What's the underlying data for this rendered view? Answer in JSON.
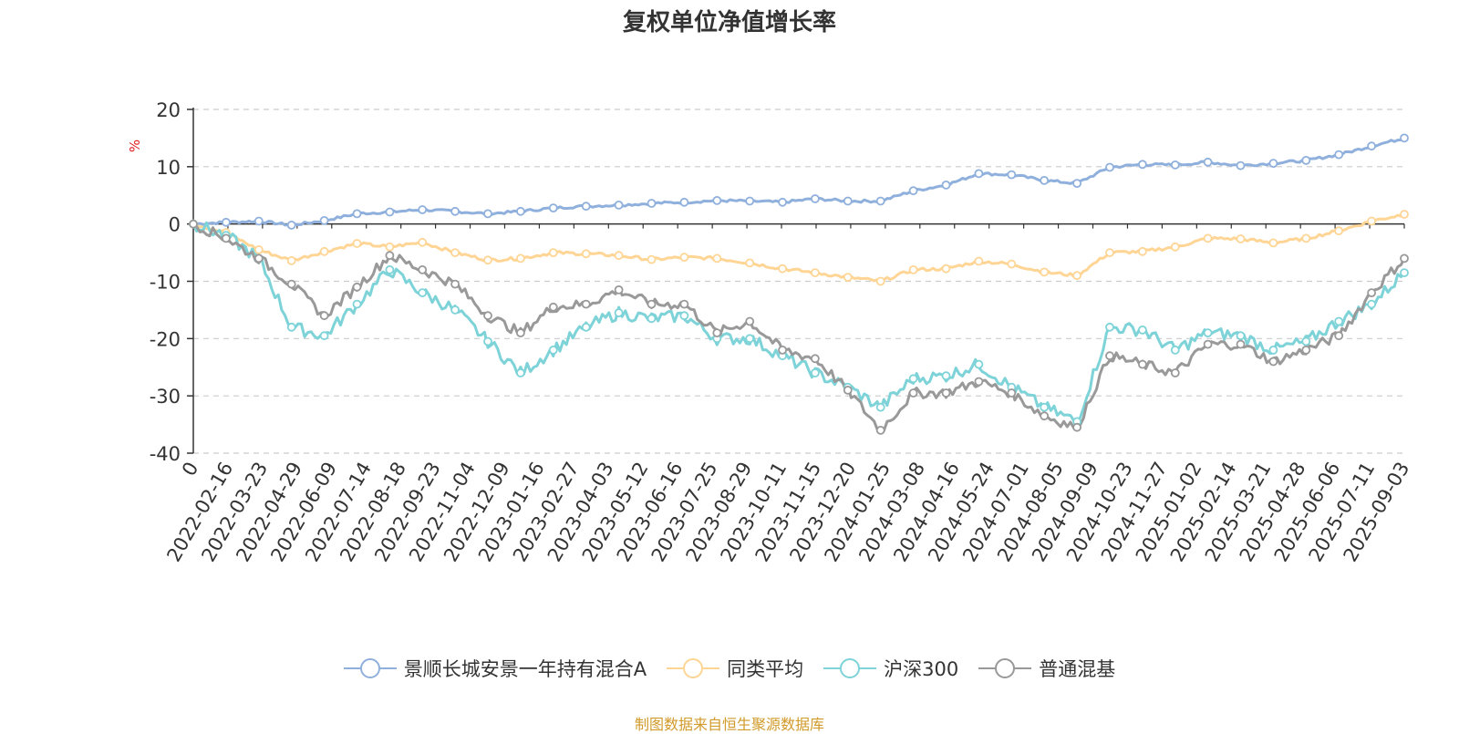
{
  "chart_data": {
    "type": "line",
    "title": "复权单位净值增长率",
    "ylabel": "%",
    "ylim": [
      -40,
      20
    ],
    "yticks": [
      20,
      10,
      0,
      -10,
      -20,
      -30,
      -40
    ],
    "x_tick_labels": [
      "0",
      "2022-02-16",
      "2022-03-23",
      "2022-04-29",
      "2022-06-09",
      "2022-07-14",
      "2022-08-18",
      "2022-09-23",
      "2022-11-04",
      "2022-12-09",
      "2023-01-16",
      "2023-02-27",
      "2023-04-03",
      "2023-05-12",
      "2023-06-16",
      "2023-07-25",
      "2023-08-29",
      "2023-10-11",
      "2023-11-15",
      "2023-12-20",
      "2024-01-25",
      "2024-03-08",
      "2024-04-16",
      "2024-05-24",
      "2024-07-01",
      "2024-08-05",
      "2024-09-09",
      "2024-10-23",
      "2024-11-27",
      "2025-01-02",
      "2025-02-14",
      "2025-03-21",
      "2025-04-28",
      "2025-06-06",
      "2025-07-11",
      "2025-09-03"
    ],
    "grid": true,
    "legend_position": "bottom-center",
    "series": [
      {
        "name": "景顺长城安景一年持有混合A",
        "color": "#8fb0dc",
        "values": [
          0,
          0.3,
          0.5,
          -0.2,
          0.6,
          1.8,
          2.1,
          2.5,
          2.2,
          1.8,
          2.2,
          2.8,
          3.1,
          3.3,
          3.6,
          3.8,
          4.1,
          4.0,
          3.8,
          4.4,
          4.0,
          4.0,
          5.8,
          6.8,
          8.8,
          8.6,
          7.6,
          7.1,
          9.9,
          10.4,
          10.3,
          10.8,
          10.2,
          10.6,
          11.1,
          12.1,
          13.6,
          15.0
        ]
      },
      {
        "name": "同类平均",
        "color": "#ffd595",
        "values": [
          0,
          -1.5,
          -4.5,
          -6.4,
          -4.8,
          -3.4,
          -4.0,
          -3.2,
          -5.0,
          -6.3,
          -6.0,
          -5.0,
          -5.2,
          -5.5,
          -6.2,
          -5.8,
          -6.0,
          -6.8,
          -7.8,
          -8.5,
          -9.3,
          -10.0,
          -8.0,
          -7.8,
          -6.5,
          -7.0,
          -8.4,
          -9.0,
          -5.0,
          -4.8,
          -4.0,
          -2.5,
          -2.6,
          -3.3,
          -2.5,
          -1.2,
          0.5,
          1.7
        ]
      },
      {
        "name": "沪深300",
        "color": "#7dd3d8",
        "values": [
          0,
          -2.0,
          -6.0,
          -18.0,
          -19.5,
          -14.0,
          -8.0,
          -12.0,
          -15.0,
          -20.5,
          -26.0,
          -22.0,
          -18.0,
          -15.5,
          -16.5,
          -16.0,
          -20.0,
          -20.0,
          -23.0,
          -26.0,
          -28.5,
          -32.0,
          -27.0,
          -26.5,
          -24.5,
          -28.5,
          -32.0,
          -34.5,
          -18.0,
          -18.5,
          -22.0,
          -19.0,
          -19.5,
          -22.0,
          -20.5,
          -17.0,
          -14.0,
          -8.5
        ]
      },
      {
        "name": "普通混基",
        "color": "#999999",
        "values": [
          0,
          -2.5,
          -6.0,
          -10.5,
          -16.0,
          -11.0,
          -5.5,
          -8.0,
          -10.5,
          -16.0,
          -19.0,
          -14.5,
          -14.0,
          -11.5,
          -14.0,
          -14.0,
          -19.0,
          -17.0,
          -22.0,
          -23.5,
          -29.0,
          -36.0,
          -29.5,
          -29.5,
          -27.5,
          -29.5,
          -33.5,
          -35.5,
          -23.0,
          -24.5,
          -26.0,
          -21.0,
          -21.0,
          -24.0,
          -22.0,
          -19.5,
          -12.0,
          -6.0
        ]
      }
    ]
  },
  "legend": {
    "items": [
      "景顺长城安景一年持有混合A",
      "同类平均",
      "沪深300",
      "普通混基"
    ]
  },
  "source_note": "制图数据来自恒生聚源数据库"
}
